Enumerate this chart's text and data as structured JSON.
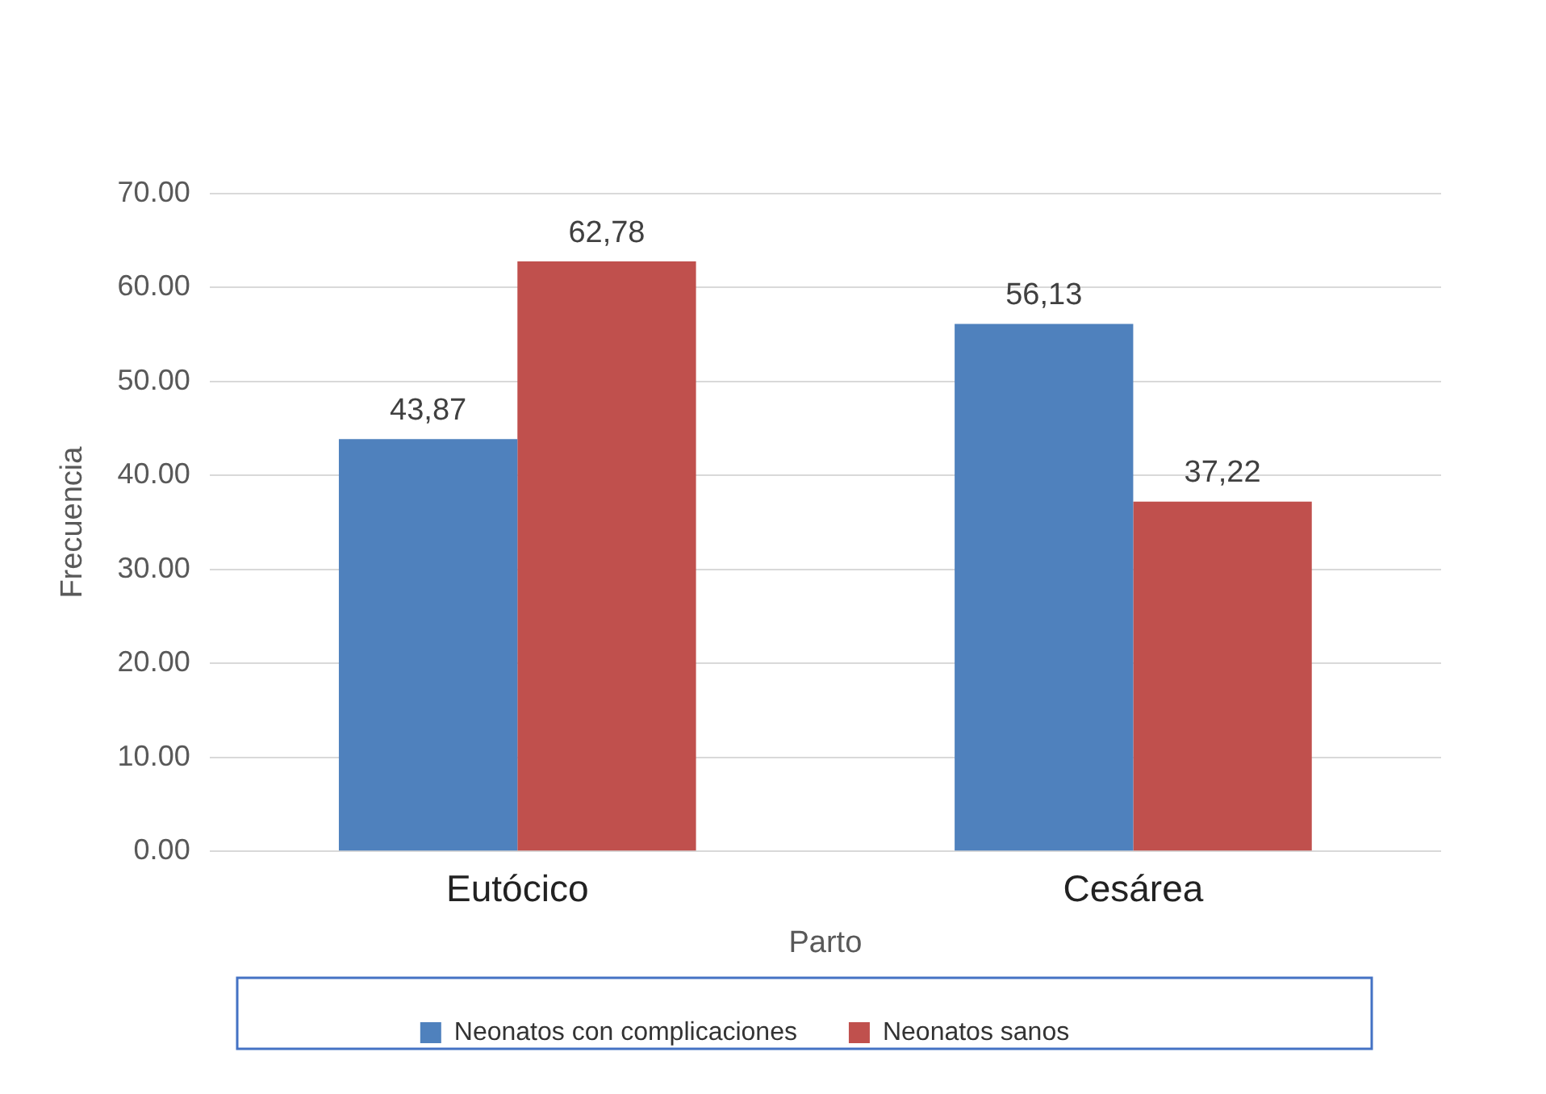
{
  "chart_data": {
    "type": "bar",
    "xlabel": "Parto",
    "ylabel": "Frecuencia",
    "categories": [
      "Eutócico",
      "Cesárea"
    ],
    "series": [
      {
        "name": "Neonatos con complicaciones",
        "color": "#4f81bd",
        "values": [
          43.87,
          56.13
        ],
        "value_labels": [
          "43,87",
          "56,13"
        ]
      },
      {
        "name": "Neonatos sanos",
        "color": "#c0504d",
        "values": [
          62.78,
          37.22
        ],
        "value_labels": [
          "62,78",
          "37,22"
        ]
      }
    ],
    "ylim": [
      0,
      70
    ],
    "yticks": [
      {
        "value": 0,
        "label": "0.00"
      },
      {
        "value": 10,
        "label": "10.00"
      },
      {
        "value": 20,
        "label": "20.00"
      },
      {
        "value": 30,
        "label": "30.00"
      },
      {
        "value": 40,
        "label": "40.00"
      },
      {
        "value": 50,
        "label": "50.00"
      },
      {
        "value": 60,
        "label": "60.00"
      },
      {
        "value": 70,
        "label": "70.00"
      }
    ],
    "grid": "y",
    "legend": "bottom"
  }
}
